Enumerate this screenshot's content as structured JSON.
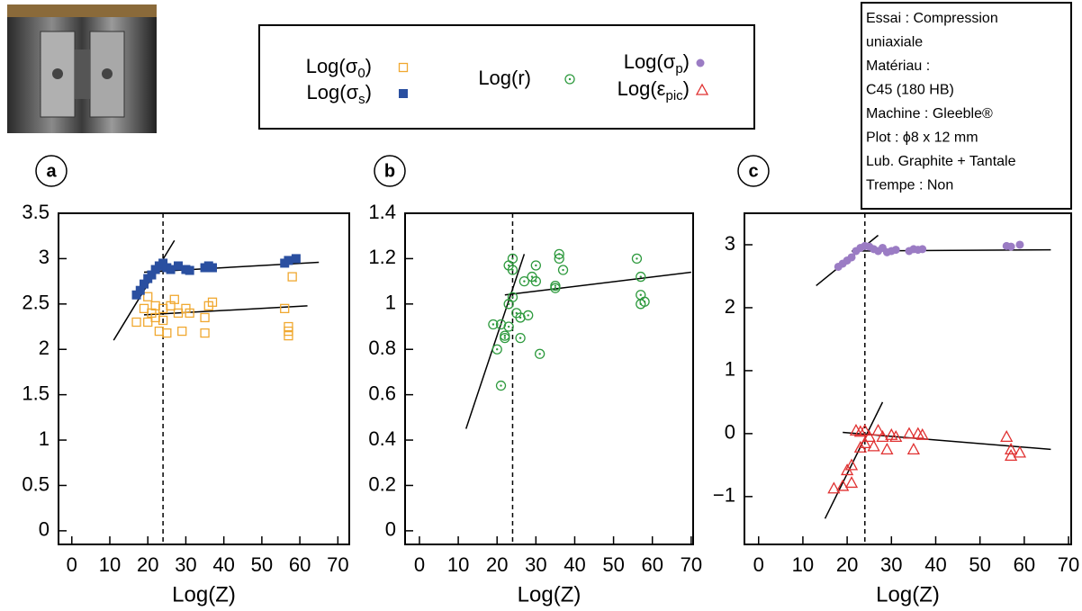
{
  "info_box": [
    "Essai : Compression",
    "uniaxiale",
    "Matériau :",
    "C45 (180 HB)",
    "Machine : Gleeble®",
    "Plot : ϕ8 x 12 mm",
    "Lub. Graphite + Tantale",
    "Trempe : Non"
  ],
  "chart_data": [
    {
      "type": "scatter",
      "panel": "a",
      "xlabel": "Log(Z)",
      "xlim": [
        -3.5,
        73
      ],
      "ylim": [
        -0.15,
        3.5
      ],
      "xticks": [
        0,
        10,
        20,
        30,
        40,
        50,
        60,
        70
      ],
      "yticks": [
        0,
        0.5,
        1,
        1.5,
        2,
        2.5,
        3,
        3.5
      ],
      "reference_x": 24,
      "series": [
        {
          "name": "Log(σ0)",
          "color": "#f0a830",
          "marker": "square-open",
          "x": [
            17,
            19,
            20,
            20,
            21,
            22,
            22,
            23,
            24,
            24,
            25,
            26,
            27,
            28,
            29,
            30,
            31,
            35,
            35,
            36,
            37,
            56,
            57,
            57,
            57,
            58
          ],
          "values": [
            2.3,
            2.45,
            2.58,
            2.3,
            2.4,
            2.48,
            2.35,
            2.2,
            2.45,
            2.32,
            2.18,
            2.48,
            2.55,
            2.4,
            2.2,
            2.45,
            2.4,
            2.35,
            2.18,
            2.48,
            2.52,
            2.45,
            2.25,
            2.2,
            2.15,
            2.8
          ]
        },
        {
          "name": "Log(σs)",
          "color": "#2a4fa0",
          "marker": "square",
          "x": [
            17,
            18,
            19,
            20,
            21,
            22,
            23,
            24,
            25,
            26,
            28,
            30,
            31,
            35,
            36,
            37,
            56,
            57,
            59
          ],
          "values": [
            2.6,
            2.65,
            2.72,
            2.78,
            2.82,
            2.88,
            2.92,
            2.95,
            2.9,
            2.88,
            2.92,
            2.88,
            2.87,
            2.9,
            2.92,
            2.9,
            2.95,
            2.98,
            3.0
          ]
        }
      ],
      "fit_lines": [
        {
          "x": [
            11,
            27
          ],
          "y": [
            2.1,
            3.2
          ]
        },
        {
          "x": [
            19,
            65
          ],
          "y": [
            2.85,
            2.96
          ]
        },
        {
          "x": [
            19,
            62
          ],
          "y": [
            2.38,
            2.48
          ]
        }
      ]
    },
    {
      "type": "scatter",
      "panel": "b",
      "xlabel": "Log(Z)",
      "xlim": [
        -3.7,
        70.5
      ],
      "ylim": [
        -0.06,
        1.4
      ],
      "xticks": [
        0,
        10,
        20,
        30,
        40,
        50,
        60,
        70
      ],
      "yticks": [
        0,
        0.2,
        0.4,
        0.6,
        0.8,
        1,
        1.2,
        1.4
      ],
      "reference_x": 24,
      "series": [
        {
          "name": "Log(r)",
          "color": "#2e9a3e",
          "marker": "circle-dot",
          "x": [
            19,
            20,
            21,
            21,
            22,
            22,
            23,
            23,
            23,
            24,
            24,
            24,
            25,
            26,
            26,
            27,
            28,
            29,
            30,
            30,
            31,
            35,
            36,
            36,
            37,
            35,
            56,
            57,
            57,
            57,
            58
          ],
          "values": [
            0.91,
            0.8,
            0.64,
            0.91,
            0.86,
            0.85,
            0.9,
            1.0,
            1.17,
            1.2,
            1.15,
            1.03,
            0.96,
            0.94,
            0.85,
            1.1,
            0.95,
            1.12,
            1.17,
            1.1,
            0.78,
            1.08,
            1.2,
            1.22,
            1.15,
            1.07,
            1.2,
            1.12,
            1.04,
            1.0,
            1.01
          ]
        }
      ],
      "fit_lines": [
        {
          "x": [
            12,
            27
          ],
          "y": [
            0.45,
            1.22
          ]
        },
        {
          "x": [
            22,
            70
          ],
          "y": [
            1.04,
            1.14
          ]
        }
      ]
    },
    {
      "type": "scatter",
      "panel": "c",
      "xlabel": "Log(Z)",
      "xlim": [
        -3.2,
        70.6
      ],
      "ylim": [
        -1.76,
        3.5
      ],
      "xticks": [
        0,
        10,
        20,
        30,
        40,
        50,
        60,
        70
      ],
      "yticks": [
        {
          "value": -1,
          "label": "−1"
        },
        0,
        1,
        2,
        3
      ],
      "reference_x": 24,
      "series": [
        {
          "name": "Log(σp)",
          "color": "#9b7cc4",
          "marker": "circle",
          "x": [
            18,
            19,
            20,
            21,
            22,
            23,
            24,
            25,
            26,
            27,
            28,
            29,
            30,
            31,
            34,
            35,
            36,
            37,
            56,
            57,
            59
          ],
          "values": [
            2.65,
            2.7,
            2.75,
            2.8,
            2.9,
            2.95,
            2.98,
            2.97,
            2.93,
            2.9,
            2.95,
            2.88,
            2.9,
            2.92,
            2.9,
            2.93,
            2.92,
            2.93,
            2.98,
            2.97,
            3.0
          ]
        },
        {
          "name": "Log(εpic)",
          "color": "#e03030",
          "marker": "triangle-open",
          "x": [
            17,
            19,
            20,
            21,
            21,
            22,
            23,
            23,
            24,
            24,
            25,
            26,
            27,
            28,
            29,
            30,
            31,
            34,
            35,
            36,
            37,
            56,
            57,
            57,
            59
          ],
          "values": [
            -0.87,
            -0.83,
            -0.58,
            -0.5,
            -0.78,
            0.05,
            0.03,
            -0.22,
            0.05,
            -0.15,
            -0.05,
            -0.2,
            0.05,
            -0.05,
            -0.25,
            -0.02,
            -0.05,
            0,
            -0.25,
            0,
            -0.02,
            -0.05,
            -0.25,
            -0.35,
            -0.3
          ]
        }
      ],
      "fit_lines": [
        {
          "x": [
            13,
            27
          ],
          "y": [
            2.35,
            3.15
          ]
        },
        {
          "x": [
            21,
            66
          ],
          "y": [
            2.9,
            2.92
          ]
        },
        {
          "x": [
            15,
            28
          ],
          "y": [
            -1.35,
            0.5
          ]
        },
        {
          "x": [
            19,
            66
          ],
          "y": [
            0.02,
            -0.25
          ]
        }
      ]
    }
  ]
}
